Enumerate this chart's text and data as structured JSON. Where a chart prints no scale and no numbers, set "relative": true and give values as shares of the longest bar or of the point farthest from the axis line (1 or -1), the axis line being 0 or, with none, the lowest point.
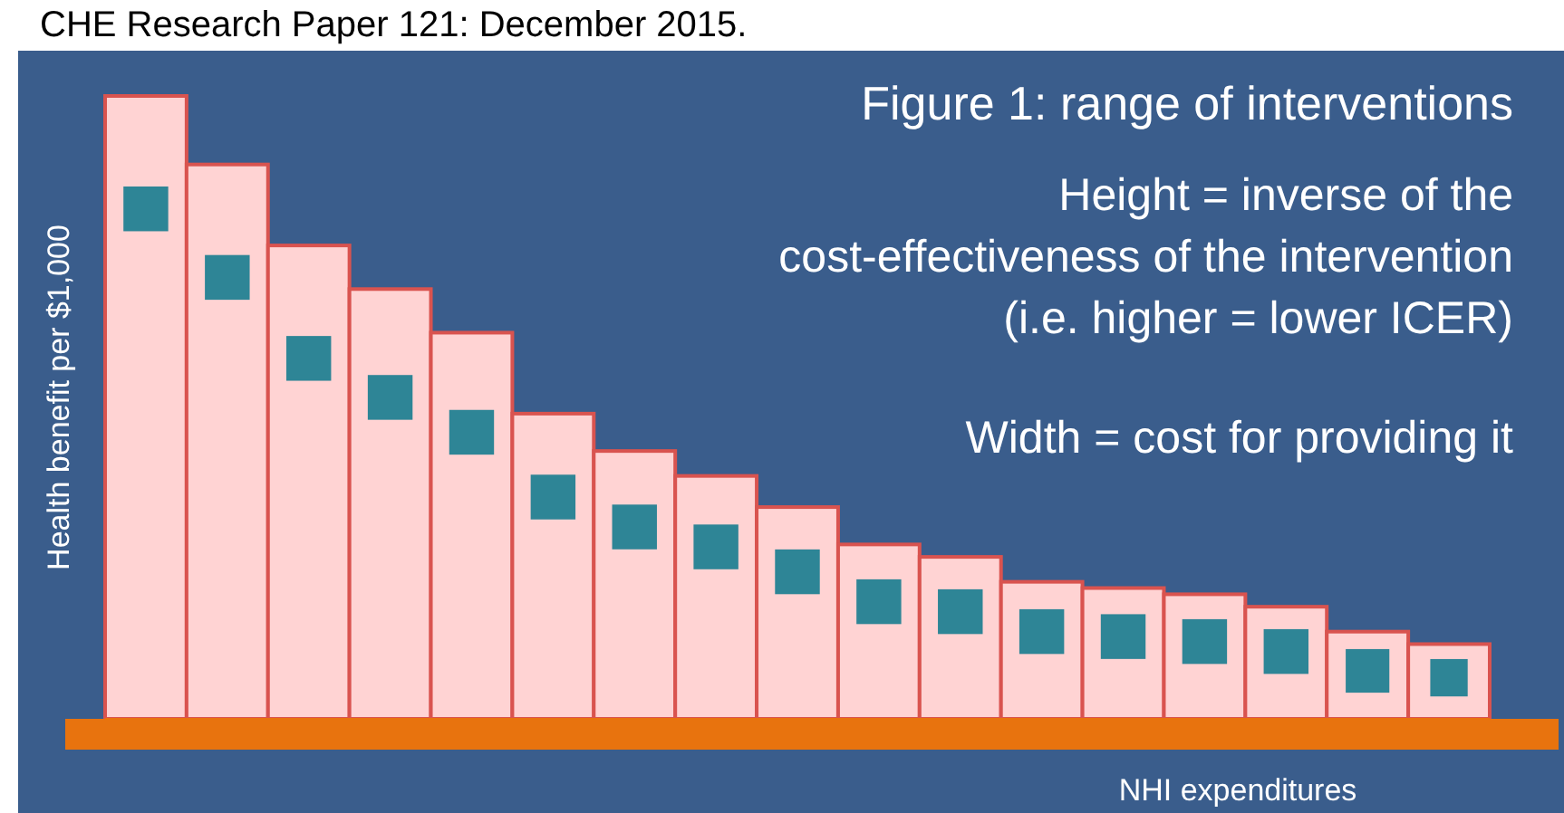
{
  "chart_data": {
    "type": "bar",
    "relative": true,
    "title": "Figure 1: range of interventions",
    "ylabel": "Health benefit per $1,000",
    "xlabel": "NHI expenditures",
    "categories": [
      null,
      null,
      null,
      null,
      null,
      null,
      null,
      null,
      null,
      null,
      null,
      null,
      null,
      null,
      null,
      null,
      null
    ],
    "values": [
      1,
      0.89,
      0.76,
      0.69,
      0.62,
      0.49,
      0.43,
      0.39,
      0.34,
      0.28,
      0.26,
      0.22,
      0.21,
      0.2,
      0.18,
      0.14,
      0.12
    ],
    "color": "#ffd3d3",
    "annotations": [
      "Height =  inverse of the cost-effectiveness of the intervention (i.e. higher = lower ICER)",
      "Width = cost for providing it",
      "CHE Research Paper 121: December 2015."
    ]
  }
}
